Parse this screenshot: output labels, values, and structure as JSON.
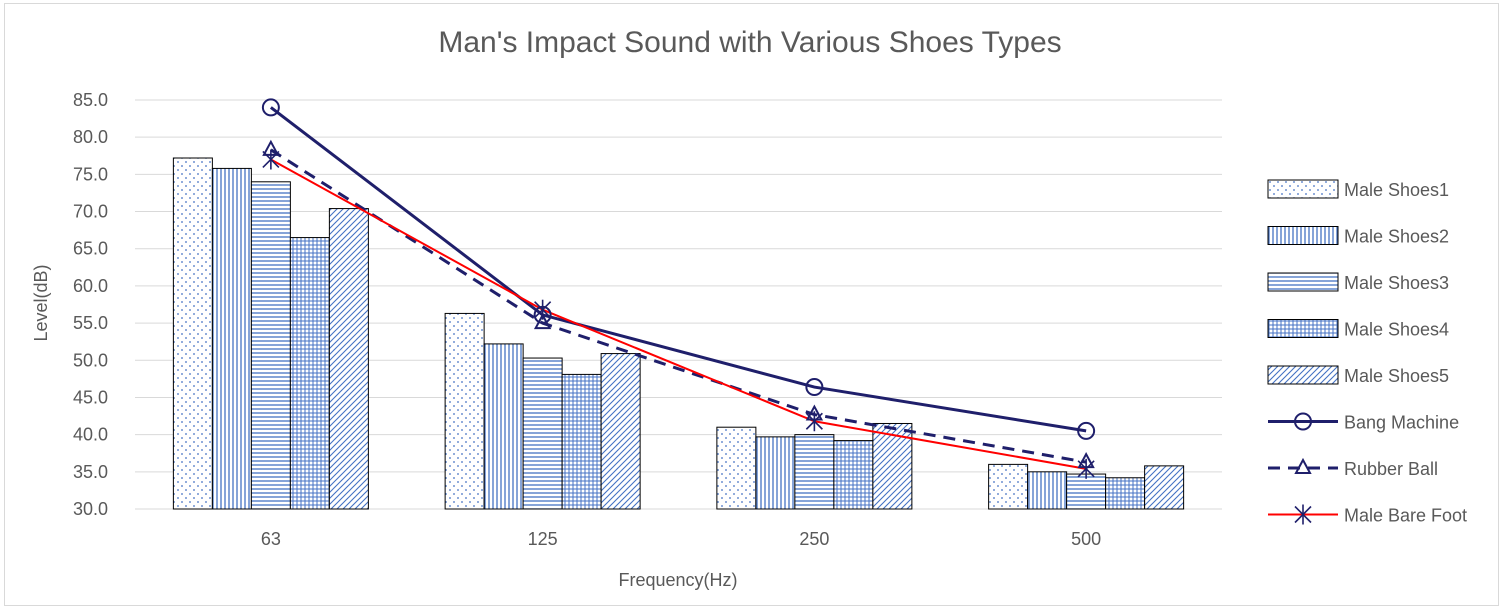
{
  "chart_data": {
    "type": "bar",
    "title": "Man's Impact Sound with Various Shoes Types",
    "xlabel": "Frequency(Hz)",
    "ylabel": "Level(dB)",
    "categories": [
      "63",
      "125",
      "250",
      "500"
    ],
    "ylim": [
      30,
      85
    ],
    "y_ticks": [
      "30.0",
      "35.0",
      "40.0",
      "45.0",
      "50.0",
      "55.0",
      "60.0",
      "65.0",
      "70.0",
      "75.0",
      "80.0",
      "85.0"
    ],
    "grid": true,
    "legend_position": "right",
    "bar_series": [
      {
        "name": "Male Shoes1",
        "values": [
          77.2,
          56.3,
          41.0,
          36.0
        ],
        "pattern": "dots"
      },
      {
        "name": "Male Shoes2",
        "values": [
          75.8,
          52.2,
          39.7,
          35.0
        ],
        "pattern": "vertical"
      },
      {
        "name": "Male Shoes3",
        "values": [
          74.0,
          50.3,
          40.0,
          34.7
        ],
        "pattern": "horizontal"
      },
      {
        "name": "Male Shoes4",
        "values": [
          66.5,
          48.1,
          39.2,
          34.2
        ],
        "pattern": "grid"
      },
      {
        "name": "Male Shoes5",
        "values": [
          70.4,
          50.9,
          41.5,
          35.8
        ],
        "pattern": "diagonal"
      }
    ],
    "line_series": [
      {
        "name": "Bang Machine",
        "values": [
          84.0,
          56.1,
          46.4,
          40.5
        ],
        "color": "#1f1f6b",
        "style": "solid",
        "marker": "circle"
      },
      {
        "name": "Rubber Ball",
        "values": [
          78.3,
          55.0,
          42.7,
          36.3
        ],
        "color": "#1f1f6b",
        "style": "dashed",
        "marker": "triangle"
      },
      {
        "name": "Male Bare Foot",
        "values": [
          77.0,
          56.8,
          41.8,
          35.4
        ],
        "color": "#ff0000",
        "style": "solid",
        "marker": "asterisk"
      }
    ],
    "colors": {
      "bar_pattern": "#4472c4",
      "bar_outline": "#000000",
      "bang": "#1f1f6b",
      "rubber": "#1f1f6b",
      "bare_foot": "#ff0000",
      "grid": "#d9d9d9",
      "text": "#595959"
    }
  }
}
